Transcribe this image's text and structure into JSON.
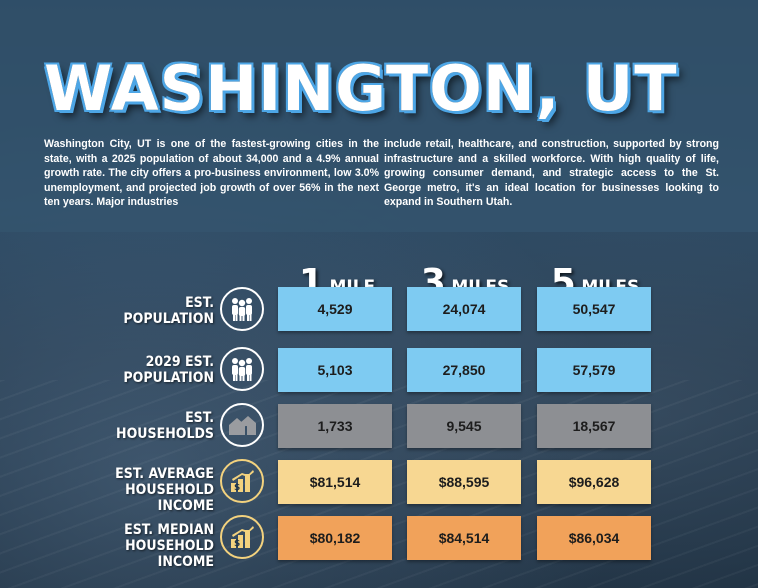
{
  "title": "WASHINGTON, UT",
  "description_left": "Washington City, UT is one of the fastest-growing cities in the state, with a 2025 population of about 34,000 and a 4.9% annual growth rate. The city offers a pro-business environment, low 3.0% unemployment, and projected job growth of over 56% in the next ten years. Major industries",
  "description_right": "include retail, healthcare, and construction, supported by strong infrastructure and a skilled workforce. With high quality of life, growing consumer demand, and strategic access to the St. George metro, it's an ideal location for businesses looking to expand in Southern Utah.",
  "columns": [
    {
      "num": "1",
      "unit": "MILE"
    },
    {
      "num": "3",
      "unit": "MILES"
    },
    {
      "num": "5",
      "unit": "MILES"
    }
  ],
  "rows": [
    {
      "label_1": "EST.",
      "label_2": "POPULATION",
      "icon": "people-icon",
      "values": [
        "4,529",
        "24,074",
        "50,547"
      ]
    },
    {
      "label_1": "2029 EST.",
      "label_2": "POPULATION",
      "icon": "people-icon",
      "values": [
        "5,103",
        "27,850",
        "57,579"
      ]
    },
    {
      "label_1": "EST.",
      "label_2": "HOUSEHOLDS",
      "icon": "houses-icon",
      "values": [
        "1,733",
        "9,545",
        "18,567"
      ]
    },
    {
      "label_1": "EST. AVERAGE",
      "label_2": "HOUSEHOLD INCOME",
      "icon": "income-chart-icon",
      "values": [
        "$81,514",
        "$88,595",
        "$96,628"
      ]
    },
    {
      "label_1": "EST. MEDIAN",
      "label_2": "HOUSEHOLD INCOME",
      "icon": "income-chart-icon",
      "values": [
        "$80,182",
        "$84,514",
        "$86,034"
      ]
    }
  ],
  "colors": {
    "population": "#7ecbf2",
    "households": "#8d8f93",
    "average_income": "#f7d792",
    "median_income": "#f1a25a"
  }
}
